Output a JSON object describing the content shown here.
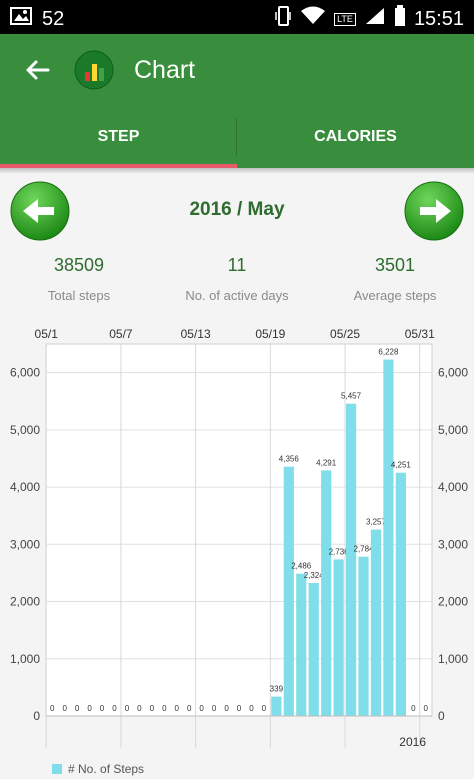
{
  "status_bar": {
    "notification_count": "52",
    "network_type": "LTE",
    "time": "15:51"
  },
  "app_bar": {
    "title": "Chart"
  },
  "tabs": [
    {
      "label": "STEP",
      "active": true
    },
    {
      "label": "CALORIES",
      "active": false
    }
  ],
  "period": {
    "label": "2016 / May"
  },
  "stats": {
    "total_steps": {
      "value": "38509",
      "label": "Total steps"
    },
    "active_days": {
      "value": "11",
      "label": "No. of active days"
    },
    "average_steps": {
      "value": "3501",
      "label": "Average steps"
    }
  },
  "colors": {
    "app_bar": "#388e3c",
    "tab_indicator": "#e85a6a",
    "bar": "#80deea",
    "accent_text": "#2e6b2e"
  },
  "chart_data": {
    "type": "bar",
    "x_tick_labels": [
      "05/1",
      "05/7",
      "05/13",
      "05/19",
      "05/25",
      "05/31"
    ],
    "x_tick_days": [
      1,
      7,
      13,
      19,
      25,
      31
    ],
    "year_label": "2016",
    "y_ticks": [
      "0",
      "1,000",
      "2,000",
      "3,000",
      "4,000",
      "5,000",
      "6,000"
    ],
    "ylim": [
      0,
      6500
    ],
    "grid": true,
    "legend_position": "bottom-left",
    "series": [
      {
        "name": "# No. of Steps",
        "days": [
          1,
          2,
          3,
          4,
          5,
          6,
          7,
          8,
          9,
          10,
          11,
          12,
          13,
          14,
          15,
          16,
          17,
          18,
          19,
          20,
          21,
          22,
          23,
          24,
          25,
          26,
          27,
          28,
          29,
          30,
          31
        ],
        "values": [
          0,
          0,
          0,
          0,
          0,
          0,
          0,
          0,
          0,
          0,
          0,
          0,
          0,
          0,
          0,
          0,
          0,
          0,
          339,
          4356,
          2486,
          2324,
          4291,
          2736,
          5457,
          2784,
          3257,
          6228,
          4251,
          0,
          0
        ],
        "labels": [
          "0",
          "0",
          "0",
          "0",
          "0",
          "0",
          "0",
          "0",
          "0",
          "0",
          "0",
          "0",
          "0",
          "0",
          "0",
          "0",
          "0",
          "0",
          "339",
          "4,356",
          "2,486",
          "2,324",
          "4,291",
          "2,736",
          "5,457",
          "2,784",
          "3,257",
          "6,228",
          "4,251",
          "0",
          "0"
        ]
      }
    ]
  }
}
